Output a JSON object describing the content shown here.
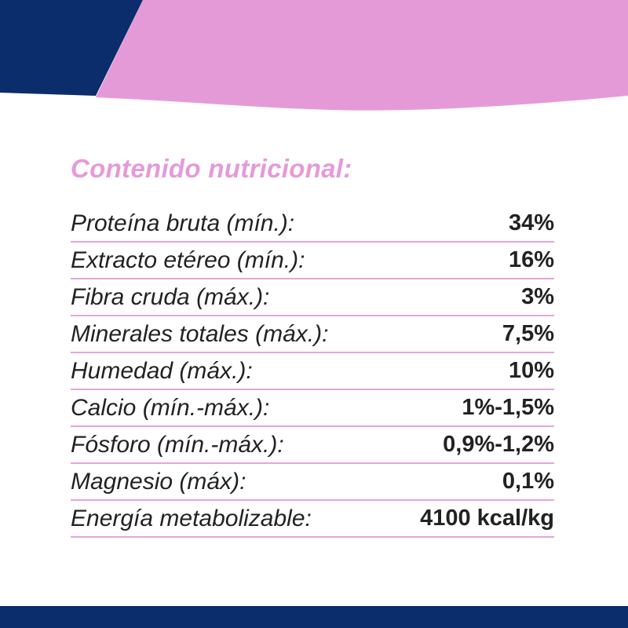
{
  "colors": {
    "navy": "#0b2d6b",
    "pink": "#e59ad8",
    "divider": "#e3a6da",
    "text": "#222222"
  },
  "title": "Contenido nutricional:",
  "rows": [
    {
      "label": "Proteína bruta (mín.):",
      "value": "34%"
    },
    {
      "label": "Extracto etéreo (mín.):",
      "value": "16%"
    },
    {
      "label": "Fibra cruda (máx.):",
      "value": "3%"
    },
    {
      "label": "Minerales totales (máx.):",
      "value": "7,5%"
    },
    {
      "label": "Humedad (máx.):",
      "value": "10%"
    },
    {
      "label": "Calcio (mín.-máx.):",
      "value": "1%-1,5%"
    },
    {
      "label": "Fósforo (mín.-máx.):",
      "value": "0,9%-1,2%"
    },
    {
      "label": "Magnesio (máx):",
      "value": "0,1%"
    },
    {
      "label": "Energía metabolizable:",
      "value": "4100 kcal/kg"
    }
  ]
}
